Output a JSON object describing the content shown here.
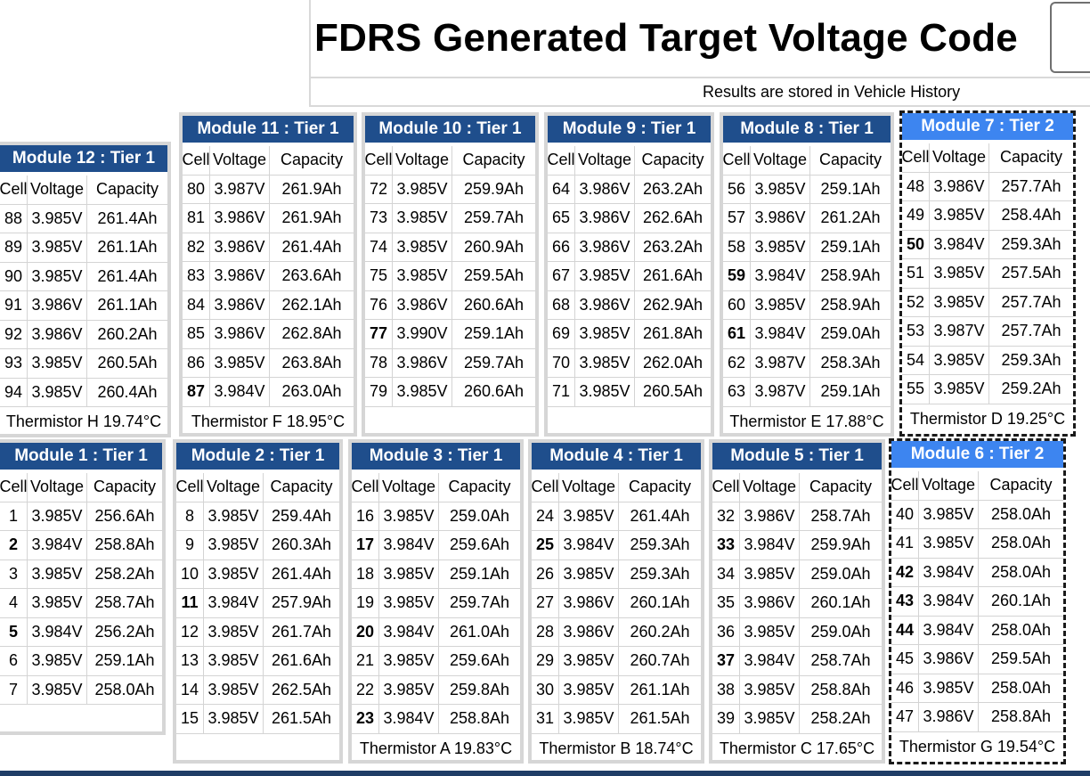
{
  "header": {
    "title": "FDRS Generated Target Voltage Code",
    "subtitle": "Results are stored in Vehicle History"
  },
  "columns": {
    "cell": "Cell",
    "voltage": "Voltage",
    "capacity": "Capacity"
  },
  "colors": {
    "tier1_header": "#1f4e8c",
    "tier2_header": "#3d85f0",
    "header_text": "#ffffff"
  },
  "modules": {
    "m12": {
      "title": "Module 12 : Tier 1",
      "thermistor": "Thermistor H 19.74°C",
      "rows": [
        {
          "cell": "88",
          "voltage": "3.985V",
          "capacity": "261.4Ah"
        },
        {
          "cell": "89",
          "voltage": "3.985V",
          "capacity": "261.1Ah"
        },
        {
          "cell": "90",
          "voltage": "3.985V",
          "capacity": "261.4Ah"
        },
        {
          "cell": "91",
          "voltage": "3.986V",
          "capacity": "261.1Ah"
        },
        {
          "cell": "92",
          "voltage": "3.986V",
          "capacity": "260.2Ah"
        },
        {
          "cell": "93",
          "voltage": "3.985V",
          "capacity": "260.5Ah"
        },
        {
          "cell": "94",
          "voltage": "3.985V",
          "capacity": "260.4Ah"
        }
      ]
    },
    "m11": {
      "title": "Module 11 : Tier 1",
      "thermistor": "Thermistor F 18.95°C",
      "rows": [
        {
          "cell": "80",
          "voltage": "3.987V",
          "capacity": "261.9Ah"
        },
        {
          "cell": "81",
          "voltage": "3.986V",
          "capacity": "261.9Ah"
        },
        {
          "cell": "82",
          "voltage": "3.986V",
          "capacity": "261.4Ah"
        },
        {
          "cell": "83",
          "voltage": "3.986V",
          "capacity": "263.6Ah"
        },
        {
          "cell": "84",
          "voltage": "3.986V",
          "capacity": "262.1Ah"
        },
        {
          "cell": "85",
          "voltage": "3.986V",
          "capacity": "262.8Ah"
        },
        {
          "cell": "86",
          "voltage": "3.985V",
          "capacity": "263.8Ah"
        },
        {
          "cell": "87",
          "voltage": "3.984V",
          "capacity": "263.0Ah",
          "bold": true
        }
      ]
    },
    "m10": {
      "title": "Module 10 : Tier 1",
      "thermistor": "",
      "rows": [
        {
          "cell": "72",
          "voltage": "3.985V",
          "capacity": "259.9Ah"
        },
        {
          "cell": "73",
          "voltage": "3.985V",
          "capacity": "259.7Ah"
        },
        {
          "cell": "74",
          "voltage": "3.985V",
          "capacity": "260.9Ah"
        },
        {
          "cell": "75",
          "voltage": "3.985V",
          "capacity": "259.5Ah"
        },
        {
          "cell": "76",
          "voltage": "3.986V",
          "capacity": "260.6Ah"
        },
        {
          "cell": "77",
          "voltage": "3.990V",
          "capacity": "259.1Ah",
          "bold": true
        },
        {
          "cell": "78",
          "voltage": "3.986V",
          "capacity": "259.7Ah"
        },
        {
          "cell": "79",
          "voltage": "3.985V",
          "capacity": "260.6Ah"
        }
      ]
    },
    "m9": {
      "title": "Module 9 : Tier 1",
      "thermistor": "",
      "rows": [
        {
          "cell": "64",
          "voltage": "3.986V",
          "capacity": "263.2Ah"
        },
        {
          "cell": "65",
          "voltage": "3.986V",
          "capacity": "262.6Ah"
        },
        {
          "cell": "66",
          "voltage": "3.986V",
          "capacity": "263.2Ah"
        },
        {
          "cell": "67",
          "voltage": "3.985V",
          "capacity": "261.6Ah"
        },
        {
          "cell": "68",
          "voltage": "3.986V",
          "capacity": "262.9Ah"
        },
        {
          "cell": "69",
          "voltage": "3.985V",
          "capacity": "261.8Ah"
        },
        {
          "cell": "70",
          "voltage": "3.985V",
          "capacity": "262.0Ah"
        },
        {
          "cell": "71",
          "voltage": "3.985V",
          "capacity": "260.5Ah"
        }
      ]
    },
    "m8": {
      "title": "Module 8 : Tier 1",
      "thermistor": "Thermistor E 17.88°C",
      "rows": [
        {
          "cell": "56",
          "voltage": "3.985V",
          "capacity": "259.1Ah"
        },
        {
          "cell": "57",
          "voltage": "3.986V",
          "capacity": "261.2Ah"
        },
        {
          "cell": "58",
          "voltage": "3.985V",
          "capacity": "259.1Ah"
        },
        {
          "cell": "59",
          "voltage": "3.984V",
          "capacity": "258.9Ah",
          "bold": true
        },
        {
          "cell": "60",
          "voltage": "3.985V",
          "capacity": "258.9Ah"
        },
        {
          "cell": "61",
          "voltage": "3.984V",
          "capacity": "259.0Ah",
          "bold": true
        },
        {
          "cell": "62",
          "voltage": "3.987V",
          "capacity": "258.3Ah"
        },
        {
          "cell": "63",
          "voltage": "3.987V",
          "capacity": "259.1Ah"
        }
      ]
    },
    "m7": {
      "title": "Module 7 : Tier 2",
      "thermistor": "Thermistor D 19.25°C",
      "rows": [
        {
          "cell": "48",
          "voltage": "3.986V",
          "capacity": "257.7Ah"
        },
        {
          "cell": "49",
          "voltage": "3.985V",
          "capacity": "258.4Ah"
        },
        {
          "cell": "50",
          "voltage": "3.984V",
          "capacity": "259.3Ah",
          "bold": true
        },
        {
          "cell": "51",
          "voltage": "3.985V",
          "capacity": "257.5Ah"
        },
        {
          "cell": "52",
          "voltage": "3.985V",
          "capacity": "257.7Ah"
        },
        {
          "cell": "53",
          "voltage": "3.987V",
          "capacity": "257.7Ah"
        },
        {
          "cell": "54",
          "voltage": "3.985V",
          "capacity": "259.3Ah"
        },
        {
          "cell": "55",
          "voltage": "3.985V",
          "capacity": "259.2Ah"
        }
      ]
    },
    "m1": {
      "title": "Module 1 : Tier 1",
      "thermistor": "",
      "rows": [
        {
          "cell": "1",
          "voltage": "3.985V",
          "capacity": "256.6Ah"
        },
        {
          "cell": "2",
          "voltage": "3.984V",
          "capacity": "258.8Ah",
          "bold": true
        },
        {
          "cell": "3",
          "voltage": "3.985V",
          "capacity": "258.2Ah"
        },
        {
          "cell": "4",
          "voltage": "3.985V",
          "capacity": "258.7Ah"
        },
        {
          "cell": "5",
          "voltage": "3.984V",
          "capacity": "256.2Ah",
          "bold": true
        },
        {
          "cell": "6",
          "voltage": "3.985V",
          "capacity": "259.1Ah"
        },
        {
          "cell": "7",
          "voltage": "3.985V",
          "capacity": "258.0Ah"
        }
      ]
    },
    "m2": {
      "title": "Module 2 : Tier 1",
      "thermistor": "",
      "rows": [
        {
          "cell": "8",
          "voltage": "3.985V",
          "capacity": "259.4Ah"
        },
        {
          "cell": "9",
          "voltage": "3.985V",
          "capacity": "260.3Ah"
        },
        {
          "cell": "10",
          "voltage": "3.985V",
          "capacity": "261.4Ah"
        },
        {
          "cell": "11",
          "voltage": "3.984V",
          "capacity": "257.9Ah",
          "bold": true
        },
        {
          "cell": "12",
          "voltage": "3.985V",
          "capacity": "261.7Ah"
        },
        {
          "cell": "13",
          "voltage": "3.985V",
          "capacity": "261.6Ah"
        },
        {
          "cell": "14",
          "voltage": "3.985V",
          "capacity": "262.5Ah"
        },
        {
          "cell": "15",
          "voltage": "3.985V",
          "capacity": "261.5Ah"
        }
      ]
    },
    "m3": {
      "title": "Module 3 : Tier 1",
      "thermistor": "Thermistor A 19.83°C",
      "rows": [
        {
          "cell": "16",
          "voltage": "3.985V",
          "capacity": "259.0Ah"
        },
        {
          "cell": "17",
          "voltage": "3.984V",
          "capacity": "259.6Ah",
          "bold": true
        },
        {
          "cell": "18",
          "voltage": "3.985V",
          "capacity": "259.1Ah"
        },
        {
          "cell": "19",
          "voltage": "3.985V",
          "capacity": "259.7Ah"
        },
        {
          "cell": "20",
          "voltage": "3.984V",
          "capacity": "261.0Ah",
          "bold": true
        },
        {
          "cell": "21",
          "voltage": "3.985V",
          "capacity": "259.6Ah"
        },
        {
          "cell": "22",
          "voltage": "3.985V",
          "capacity": "259.8Ah"
        },
        {
          "cell": "23",
          "voltage": "3.984V",
          "capacity": "258.8Ah",
          "bold": true
        }
      ]
    },
    "m4": {
      "title": "Module 4 : Tier 1",
      "thermistor": "Thermistor B 18.74°C",
      "rows": [
        {
          "cell": "24",
          "voltage": "3.985V",
          "capacity": "261.4Ah"
        },
        {
          "cell": "25",
          "voltage": "3.984V",
          "capacity": "259.3Ah",
          "bold": true
        },
        {
          "cell": "26",
          "voltage": "3.985V",
          "capacity": "259.3Ah"
        },
        {
          "cell": "27",
          "voltage": "3.986V",
          "capacity": "260.1Ah"
        },
        {
          "cell": "28",
          "voltage": "3.986V",
          "capacity": "260.2Ah"
        },
        {
          "cell": "29",
          "voltage": "3.985V",
          "capacity": "260.7Ah"
        },
        {
          "cell": "30",
          "voltage": "3.985V",
          "capacity": "261.1Ah"
        },
        {
          "cell": "31",
          "voltage": "3.985V",
          "capacity": "261.5Ah"
        }
      ]
    },
    "m5": {
      "title": "Module 5 : Tier 1",
      "thermistor": "Thermistor C 17.65°C",
      "rows": [
        {
          "cell": "32",
          "voltage": "3.986V",
          "capacity": "258.7Ah"
        },
        {
          "cell": "33",
          "voltage": "3.984V",
          "capacity": "259.9Ah",
          "bold": true
        },
        {
          "cell": "34",
          "voltage": "3.985V",
          "capacity": "259.0Ah"
        },
        {
          "cell": "35",
          "voltage": "3.986V",
          "capacity": "260.1Ah"
        },
        {
          "cell": "36",
          "voltage": "3.985V",
          "capacity": "259.0Ah"
        },
        {
          "cell": "37",
          "voltage": "3.984V",
          "capacity": "258.7Ah",
          "bold": true
        },
        {
          "cell": "38",
          "voltage": "3.985V",
          "capacity": "258.8Ah"
        },
        {
          "cell": "39",
          "voltage": "3.985V",
          "capacity": "258.2Ah"
        }
      ]
    },
    "m6": {
      "title": "Module 6 : Tier 2",
      "thermistor": "Thermistor G 19.54°C",
      "rows": [
        {
          "cell": "40",
          "voltage": "3.985V",
          "capacity": "258.0Ah"
        },
        {
          "cell": "41",
          "voltage": "3.985V",
          "capacity": "258.0Ah"
        },
        {
          "cell": "42",
          "voltage": "3.984V",
          "capacity": "258.0Ah",
          "bold": true
        },
        {
          "cell": "43",
          "voltage": "3.984V",
          "capacity": "260.1Ah",
          "bold": true
        },
        {
          "cell": "44",
          "voltage": "3.984V",
          "capacity": "258.0Ah",
          "bold": true
        },
        {
          "cell": "45",
          "voltage": "3.986V",
          "capacity": "259.5Ah"
        },
        {
          "cell": "46",
          "voltage": "3.985V",
          "capacity": "258.0Ah"
        },
        {
          "cell": "47",
          "voltage": "3.986V",
          "capacity": "258.8Ah"
        }
      ]
    }
  }
}
